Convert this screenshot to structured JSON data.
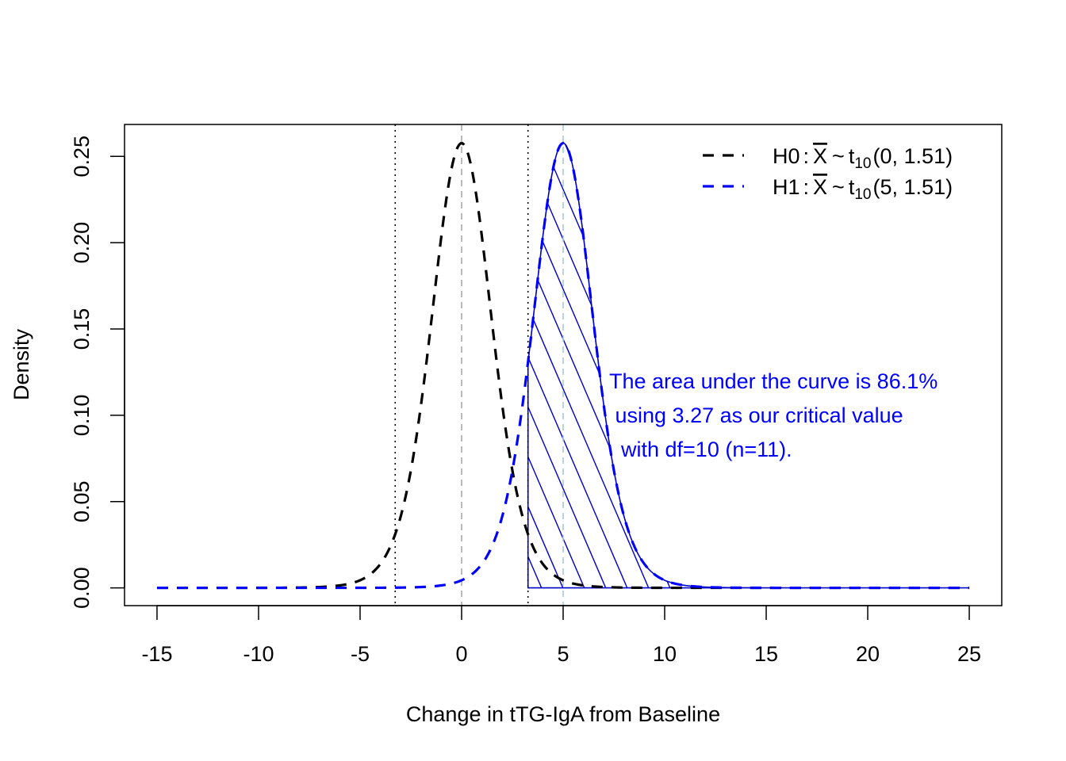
{
  "chart_data": {
    "type": "line",
    "title": "",
    "xlabel": "Change in tTG-IgA from Baseline",
    "ylabel": "Density",
    "xlim": [
      -16.6,
      26.6
    ],
    "ylim": [
      -0.0103,
      0.2685
    ],
    "x_ticks": [
      -15,
      -10,
      -5,
      0,
      5,
      10,
      15,
      20,
      25
    ],
    "x_tick_labels": [
      "-15",
      "-10",
      "-5",
      "0",
      "5",
      "10",
      "15",
      "20",
      "25"
    ],
    "y_ticks": [
      0,
      0.05,
      0.1,
      0.15,
      0.2,
      0.25
    ],
    "y_tick_labels": [
      "0.00",
      "0.05",
      "0.10",
      "0.15",
      "0.20",
      "0.25"
    ],
    "grid": false,
    "legend_position": "top-right",
    "series": [
      {
        "name": "H0",
        "distribution": "t",
        "df": 10,
        "location": 0,
        "scale": 1.51,
        "color": "#000000",
        "line_style": "dashed"
      },
      {
        "name": "H1",
        "distribution": "t",
        "df": 10,
        "location": 5,
        "scale": 1.51,
        "color": "#0000ff",
        "line_style": "dashed"
      }
    ],
    "x_range": [
      -15,
      25
    ],
    "legend": [
      {
        "lhs": "H0",
        "rhs_mean": "0",
        "rhs_scale": "1.51",
        "color": "#000000"
      },
      {
        "lhs": "H1",
        "rhs_mean": "5",
        "rhs_scale": "1.51",
        "color": "#0000ff"
      }
    ],
    "legend_symbols": {
      "colon": ":",
      "xbar": "X",
      "tilde": "~",
      "t": "t",
      "df_sub": "10",
      "open": "(",
      "sep": ", ",
      "close": ")"
    },
    "critical_lines": [
      {
        "x": -3.27,
        "color": "#000000",
        "style": "dotted"
      },
      {
        "x": 3.27,
        "color": "#000000",
        "style": "dotted"
      }
    ],
    "mean_lines": [
      {
        "x": 0,
        "color": "#aaaaaa",
        "style": "dashed"
      },
      {
        "x": 5,
        "color": "#a8c8d8",
        "style": "dashed"
      }
    ],
    "shaded_region": {
      "from": 3.27,
      "to": 25,
      "series": "H1",
      "color": "#0000cc",
      "pattern": "hatched"
    },
    "annotation": {
      "lines": [
        "The area under the curve is 86.1%",
        " using 3.27 as our critical value",
        "  with df=10 (n=11)."
      ],
      "color": "#0000ff"
    }
  }
}
